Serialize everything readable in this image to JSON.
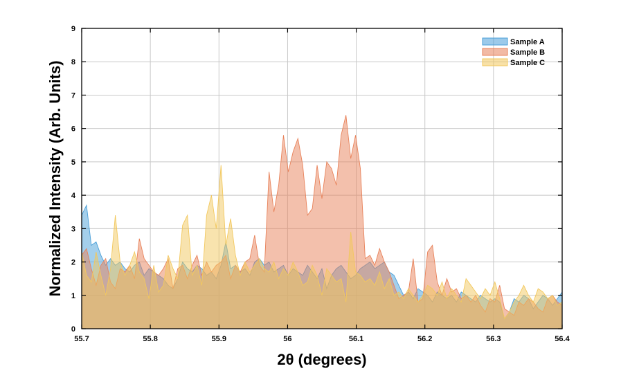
{
  "chart_data": {
    "type": "area",
    "xlabel": "2θ  (degrees)",
    "ylabel": "Normalized Intensity (Arb. Units)",
    "xlim": [
      55.7,
      56.4
    ],
    "ylim": [
      0,
      9
    ],
    "x_ticks": [
      "55.7",
      "55.8",
      "55.9",
      "56",
      "56.1",
      "56.2",
      "56.3",
      "56.4"
    ],
    "y_ticks": [
      "0",
      "1",
      "2",
      "3",
      "4",
      "5",
      "6",
      "7",
      "8",
      "9"
    ],
    "grid": true,
    "legend_position": "top-right",
    "x": [
      55.7,
      55.707,
      55.714,
      55.721,
      55.728,
      55.735,
      55.742,
      55.749,
      55.756,
      55.763,
      55.77,
      55.777,
      55.784,
      55.791,
      55.798,
      55.805,
      55.812,
      55.819,
      55.826,
      55.833,
      55.84,
      55.847,
      55.854,
      55.861,
      55.868,
      55.875,
      55.882,
      55.889,
      55.896,
      55.903,
      55.91,
      55.917,
      55.924,
      55.931,
      55.938,
      55.945,
      55.952,
      55.959,
      55.966,
      55.973,
      55.98,
      55.987,
      55.994,
      56.001,
      56.008,
      56.015,
      56.022,
      56.029,
      56.036,
      56.043,
      56.05,
      56.057,
      56.064,
      56.071,
      56.078,
      56.085,
      56.092,
      56.099,
      56.106,
      56.113,
      56.12,
      56.127,
      56.134,
      56.141,
      56.148,
      56.155,
      56.162,
      56.169,
      56.176,
      56.183,
      56.19,
      56.197,
      56.204,
      56.211,
      56.218,
      56.225,
      56.232,
      56.239,
      56.246,
      56.253,
      56.26,
      56.267,
      56.274,
      56.281,
      56.288,
      56.295,
      56.302,
      56.309,
      56.316,
      56.323,
      56.33,
      56.337,
      56.344,
      56.351,
      56.358,
      56.365,
      56.372,
      56.379,
      56.386,
      56.393,
      56.4
    ],
    "series": [
      {
        "name": "Sample A",
        "color": "#4a9fd8",
        "values": [
          3.4,
          3.7,
          2.5,
          2.6,
          2.2,
          1.9,
          2.1,
          1.9,
          2.0,
          1.8,
          1.7,
          1.9,
          2.0,
          1.6,
          1.8,
          1.7,
          1.6,
          1.5,
          1.3,
          1.2,
          1.5,
          2.0,
          1.8,
          1.7,
          1.9,
          1.8,
          1.6,
          1.7,
          1.5,
          1.9,
          2.6,
          1.8,
          1.9,
          1.7,
          1.8,
          1.6,
          2.0,
          2.1,
          1.9,
          2.0,
          1.7,
          1.8,
          1.9,
          1.6,
          1.8,
          1.7,
          1.6,
          1.9,
          1.7,
          1.5,
          1.8,
          1.2,
          1.6,
          1.8,
          1.9,
          1.7,
          1.5,
          1.6,
          1.8,
          1.9,
          2.0,
          1.8,
          1.9,
          2.0,
          1.7,
          1.6,
          1.3,
          1.0,
          1.1,
          0.9,
          1.2,
          1.1,
          1.0,
          0.8,
          1.1,
          1.0,
          0.9,
          1.0,
          0.8,
          1.1,
          1.0,
          0.9,
          0.8,
          1.0,
          0.9,
          0.8,
          0.9,
          0.8,
          0.3,
          0.5,
          0.9,
          0.8,
          1.0,
          0.9,
          0.6,
          0.8,
          1.0,
          0.9,
          0.7,
          0.9,
          1.1
        ]
      },
      {
        "name": "Sample B",
        "color": "#e8825a",
        "values": [
          2.2,
          2.4,
          1.8,
          1.3,
          1.9,
          2.1,
          1.4,
          1.2,
          1.8,
          1.7,
          1.9,
          1.5,
          2.7,
          2.1,
          1.9,
          1.7,
          1.6,
          1.8,
          2.1,
          1.2,
          1.8,
          1.9,
          1.5,
          1.9,
          2.2,
          1.6,
          2.0,
          1.7,
          1.9,
          2.0,
          2.2,
          1.5,
          1.9,
          1.7,
          2.0,
          2.1,
          2.8,
          1.9,
          1.7,
          4.7,
          3.5,
          4.3,
          5.8,
          4.7,
          5.3,
          5.7,
          4.9,
          3.4,
          3.6,
          4.9,
          3.9,
          5.0,
          4.8,
          4.3,
          5.8,
          6.4,
          5.1,
          5.8,
          4.8,
          2.1,
          2.2,
          1.9,
          2.4,
          2.0,
          1.7,
          1.3,
          0.9,
          1.0,
          1.1,
          2.1,
          0.8,
          0.9,
          2.3,
          2.5,
          1.4,
          1.0,
          1.5,
          1.1,
          1.2,
          0.9,
          1.0,
          0.8,
          1.0,
          0.7,
          0.5,
          0.9,
          0.8,
          1.3,
          0.6,
          0.5,
          0.4,
          0.8,
          0.7,
          0.9,
          0.8,
          0.6,
          0.5,
          0.9,
          1.0,
          0.8,
          0.7
        ]
      },
      {
        "name": "Sample C",
        "color": "#f2c85e",
        "values": [
          2.3,
          1.6,
          1.4,
          2.3,
          1.6,
          1.0,
          1.8,
          3.4,
          2.0,
          1.6,
          1.9,
          2.3,
          1.7,
          1.5,
          0.9,
          1.9,
          1.1,
          1.3,
          2.2,
          1.8,
          1.5,
          3.1,
          3.4,
          1.6,
          1.9,
          1.3,
          3.4,
          4.0,
          3.0,
          4.9,
          2.5,
          3.3,
          2.2,
          1.6,
          2.0,
          1.7,
          1.9,
          2.1,
          1.8,
          1.7,
          2.0,
          1.5,
          1.8,
          1.6,
          2.0,
          1.7,
          1.3,
          1.4,
          1.9,
          1.6,
          1.0,
          1.8,
          1.6,
          1.4,
          1.5,
          0.8,
          2.9,
          1.7,
          1.6,
          1.4,
          1.5,
          1.3,
          1.7,
          1.2,
          1.5,
          1.0,
          1.1,
          0.9,
          1.2,
          1.0,
          0.8,
          1.0,
          1.3,
          1.2,
          1.0,
          1.4,
          0.9,
          1.2,
          1.0,
          0.8,
          1.5,
          1.3,
          1.1,
          0.9,
          1.2,
          1.0,
          1.4,
          0.9,
          0.3,
          0.5,
          0.8,
          1.0,
          1.3,
          1.0,
          0.8,
          1.2,
          1.1,
          0.9,
          1.0,
          0.7,
          0.8
        ]
      }
    ]
  }
}
